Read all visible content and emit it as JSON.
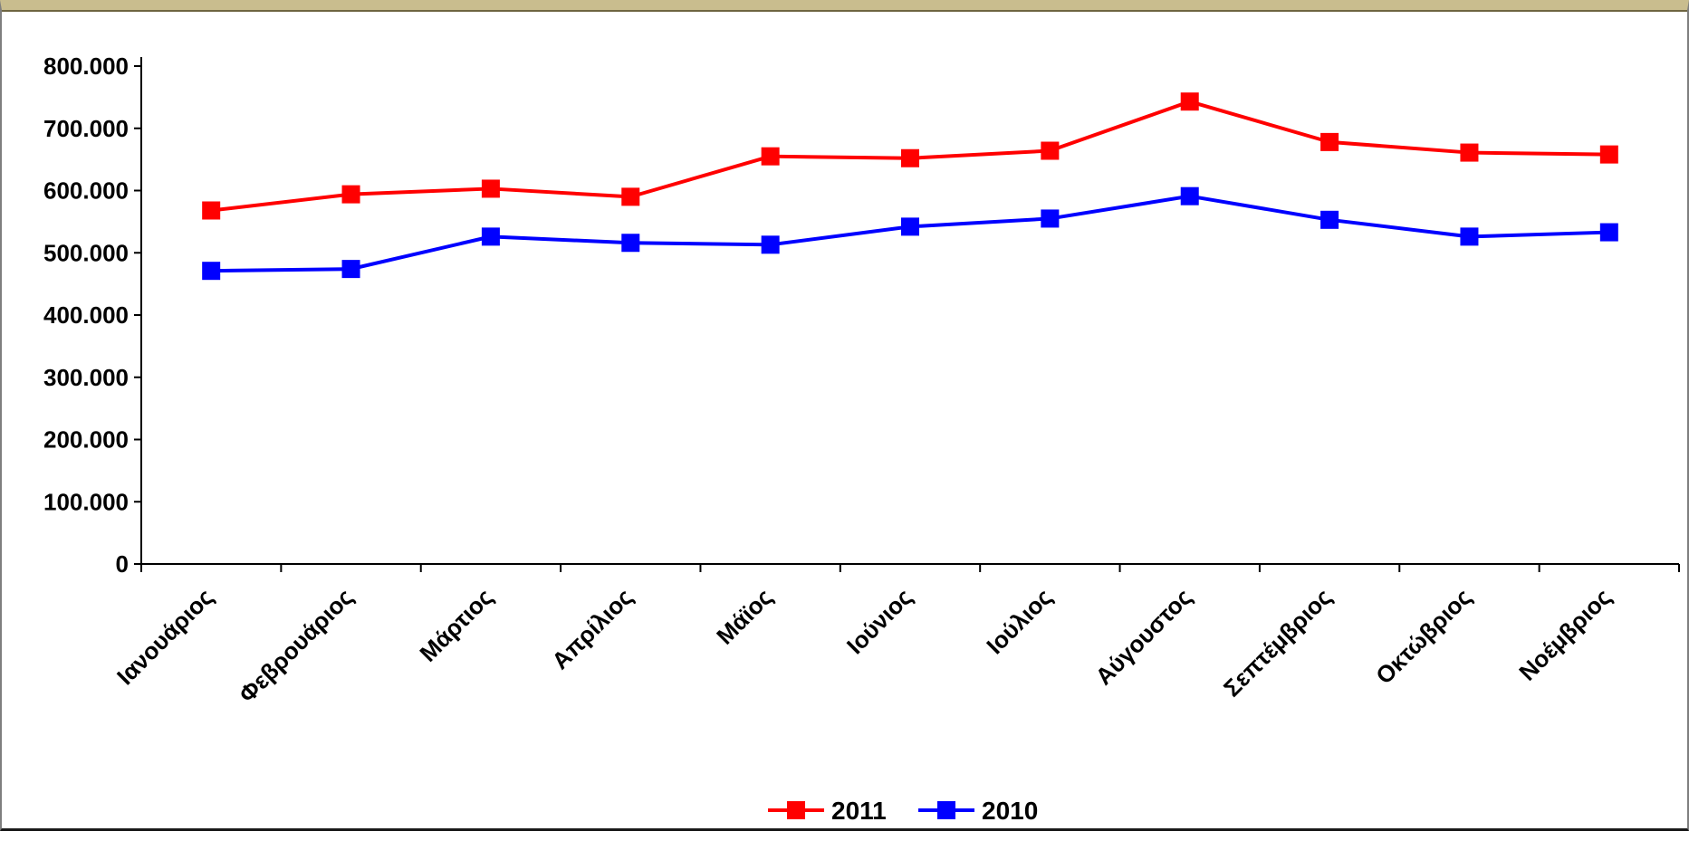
{
  "chart_data": {
    "type": "line",
    "categories": [
      "Ιανουάριος",
      "Φεβρουάριος",
      "Μάρτιος",
      "Απρίλιος",
      "Μάϊος",
      "Ιούνιος",
      "Ιούλιος",
      "Αύγουστος",
      "Σεπτέμβριος",
      "Οκτώβριος",
      "Νοέμβριος"
    ],
    "series": [
      {
        "name": "2011",
        "color": "#ff0000",
        "values": [
          568000,
          594000,
          603000,
          590000,
          655000,
          652000,
          664000,
          743000,
          678000,
          661000,
          658000
        ]
      },
      {
        "name": "2010",
        "color": "#0000ff",
        "values": [
          471000,
          474000,
          526000,
          516000,
          513000,
          542000,
          555000,
          591000,
          553000,
          526000,
          533000
        ]
      }
    ],
    "y_ticks": [
      "0",
      "100.000",
      "200.000",
      "300.000",
      "400.000",
      "500.000",
      "600.000",
      "700.000",
      "800.000"
    ],
    "ylim": [
      0,
      800000
    ],
    "grid": false,
    "legend_position": "bottom",
    "title": "",
    "xlabel": "",
    "ylabel": ""
  }
}
